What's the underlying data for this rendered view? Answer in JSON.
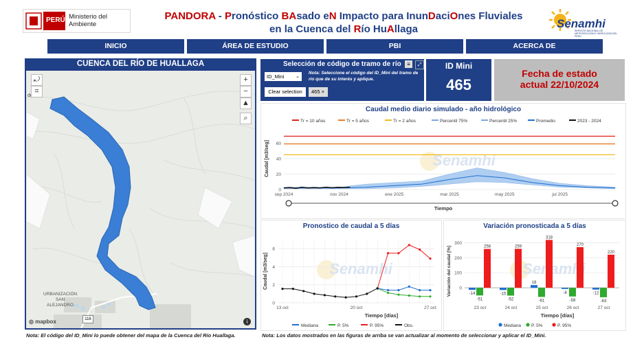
{
  "header": {
    "logo_country": "PERÚ",
    "logo_ministry": "Ministerio del Ambiente",
    "title_line1": [
      {
        "t": "PANDORA",
        "c": "red"
      },
      {
        "t": " - ",
        "c": "blue"
      },
      {
        "t": "P",
        "c": "red"
      },
      {
        "t": "ronóstico ",
        "c": "blue"
      },
      {
        "t": "BA",
        "c": "red"
      },
      {
        "t": "sado e",
        "c": "blue"
      },
      {
        "t": "N",
        "c": "red"
      },
      {
        "t": " Impacto para Inun",
        "c": "blue"
      },
      {
        "t": "D",
        "c": "red"
      },
      {
        "t": "aci",
        "c": "blue"
      },
      {
        "t": "O",
        "c": "red"
      },
      {
        "t": "nes Fluviales",
        "c": "blue"
      }
    ],
    "title_line2": [
      {
        "t": "en la Cuenca del ",
        "c": "blue"
      },
      {
        "t": "R",
        "c": "red"
      },
      {
        "t": "ío Hu",
        "c": "blue"
      },
      {
        "t": "A",
        "c": "red"
      },
      {
        "t": "llaga",
        "c": "blue"
      }
    ],
    "brand": "Senamhi",
    "brand_sub": "SERVICIO NACIONAL DE METEOROLOGÍA E HIDROLOGÍA DEL PERÚ"
  },
  "nav": [
    {
      "label": "INICIO"
    },
    {
      "label": "ÁREA DE ESTUDIO"
    },
    {
      "label": "PBI"
    },
    {
      "label": "ACERCA DE"
    }
  ],
  "map": {
    "title": "CUENCA DEL RÍO DE HUALLAGA",
    "edge_label": "de",
    "place_label_1": "URBANIZACIÓN",
    "place_label_2": "SAN",
    "place_label_3": "ALEJANDRO",
    "road_shield": "116",
    "attribution": "mapbox",
    "info_symbol": "i",
    "controls": {
      "zoom_in": "+",
      "zoom_out": "−",
      "compass": "▲",
      "search": "⌕"
    }
  },
  "selector": {
    "title": "Selección de código de tramo de río",
    "dropdown_value": "ID_Mini",
    "note": "Nota: Seleccione el código del ID_Mini del tramo de río que de su interés y aplique.",
    "clear_button": "Clear selection",
    "chip_value": "465",
    "chip_close": "×"
  },
  "id_mini": {
    "label": "ID Mini",
    "value": "465"
  },
  "fecha": {
    "line1": "Fecha de estado",
    "line2": "actual 22/10/2024"
  },
  "watermark": {
    "brand": "Senamhi"
  },
  "colors": {
    "navy": "#1f3f86",
    "red": "#c00000",
    "river": "#3a7fd5"
  },
  "chart_data": [
    {
      "type": "line",
      "title": "Caudal medio diario simulado - año hidrológico",
      "xlabel": "Tiempo",
      "ylabel": "Caudal [m3/seg]",
      "ylim": [
        0,
        80
      ],
      "yticks": [
        0,
        20,
        40,
        60
      ],
      "xticks": [
        "sep 2024",
        "nov 2024",
        "ene 2025",
        "mar 2025",
        "may 2025",
        "jul 2025"
      ],
      "legend": [
        "Tr = 10 años",
        "Tr = 5 años",
        "Tr = 2 años",
        "Percentil 75%",
        "Percentil 25%",
        "Promedio",
        "2023 - 2024"
      ],
      "thresholds": [
        {
          "name": "Tr = 10 años",
          "value": 69,
          "color": "#e0201a"
        },
        {
          "name": "Tr = 5 años",
          "value": 59,
          "color": "#f07b22"
        },
        {
          "name": "Tr = 2 años",
          "value": 45,
          "color": "#f5b91e"
        }
      ],
      "x_month_index": [
        0,
        1,
        2,
        3,
        4,
        5,
        6,
        7,
        8,
        9,
        10,
        11,
        12
      ],
      "p75": [
        3,
        3,
        3,
        7,
        9,
        11,
        20,
        28,
        22,
        14,
        8,
        5,
        3
      ],
      "p25": [
        1,
        1,
        1,
        1,
        2,
        4,
        7,
        10,
        9,
        6,
        3,
        2,
        1
      ],
      "promedio": [
        2,
        2,
        2,
        3,
        5,
        7,
        13,
        18,
        15,
        9,
        5,
        3,
        2
      ],
      "observed_2023_2024": [
        2,
        2.5,
        1.5,
        3,
        2,
        2.5,
        2,
        3,
        2.2,
        2.8,
        2.4,
        3
      ]
    },
    {
      "type": "line",
      "title": "Pronostico de caudal a 5 días",
      "xlabel": "Tiempo [días]",
      "ylabel": "Caudal [m3/seg]",
      "ylim": [
        0,
        7
      ],
      "yticks": [
        0,
        2,
        4,
        6
      ],
      "xticks": [
        "13 oct",
        "20 oct",
        "27 oct"
      ],
      "legend": [
        "Mediana",
        "P. 5%",
        "P. 95%",
        "Obs."
      ],
      "obs_x": [
        0,
        1,
        2,
        3,
        4,
        5,
        6,
        7,
        8,
        9
      ],
      "obs": [
        1.55,
        1.55,
        1.3,
        1.0,
        0.85,
        0.7,
        0.6,
        0.7,
        1.0,
        1.6
      ],
      "fc_x": [
        9,
        10,
        11,
        12,
        13,
        14
      ],
      "mediana": [
        1.6,
        1.4,
        1.4,
        1.8,
        1.4,
        1.4
      ],
      "p5": [
        1.6,
        1.1,
        0.9,
        0.8,
        0.7,
        0.7
      ],
      "p95": [
        1.6,
        5.5,
        5.5,
        6.4,
        5.9,
        4.9
      ]
    },
    {
      "type": "bar",
      "title": "Variación pronosticada a 5 días",
      "xlabel": "Tiempo [días]",
      "ylabel": "Variación del caudal [%]",
      "ylim": [
        -100,
        320
      ],
      "yticks": [
        -100,
        0,
        100,
        200,
        300
      ],
      "categories": [
        "23 oct",
        "24 oct",
        "25 oct",
        "26 oct",
        "27 oct"
      ],
      "legend": [
        "Mediana",
        "P. 5%",
        "P. 95%"
      ],
      "series": [
        {
          "name": "Mediana",
          "values": [
            -14,
            -15,
            18,
            -8,
            -12
          ],
          "color": "#1f6fd0"
        },
        {
          "name": "P. 5%",
          "values": [
            -51,
            -52,
            -61,
            -58,
            -63
          ],
          "color": "#2eaa2e"
        },
        {
          "name": "P. 95%",
          "values": [
            258,
            259,
            318,
            270,
            220
          ],
          "color": "#ee1c1c"
        }
      ]
    }
  ],
  "footer": {
    "note_left": "Nota: El código del ID_Mini lo puede obtener del mapa de la Cuenca del Río Huallaga.",
    "note_right": "Nota: Los datos mostrados en las figuras de arriba se van actualizar al momento de seleccionar y aplicar el ID_Mini."
  }
}
